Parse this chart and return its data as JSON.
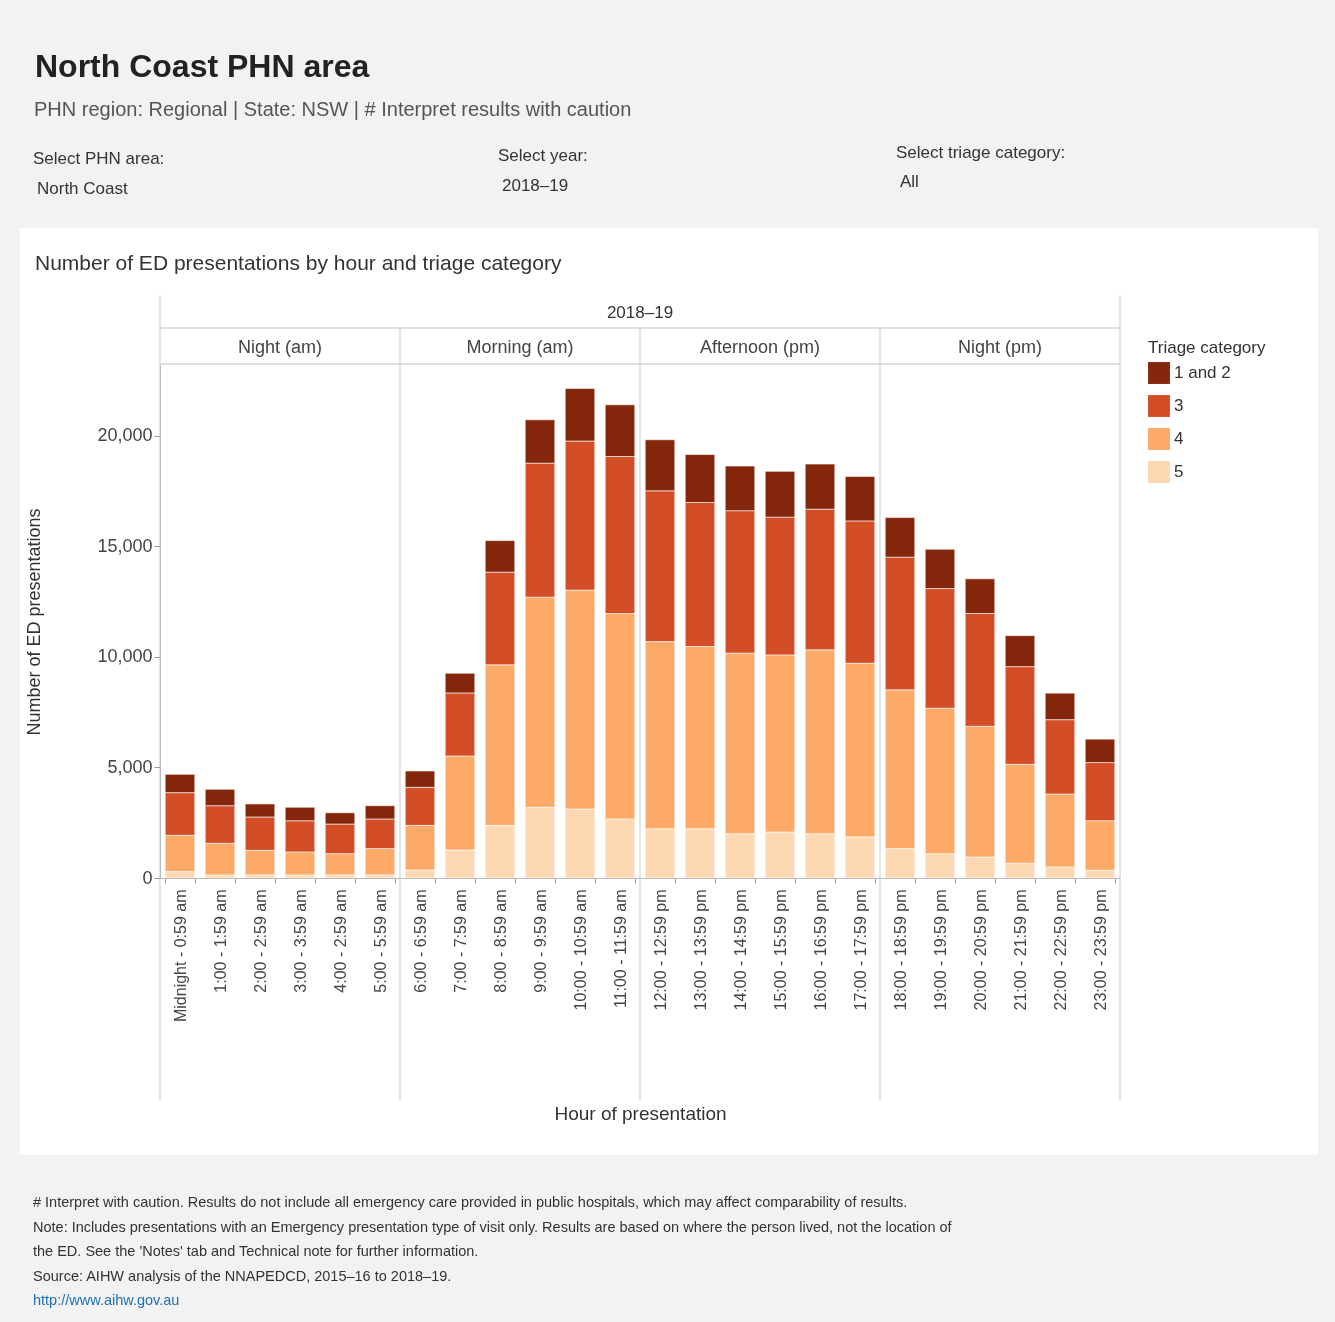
{
  "chart_data": {
    "type": "bar",
    "stacked": true,
    "title": "North Coast PHN area",
    "subtitle": "PHN region: Regional   |   State: NSW   |   # Interpret results with caution",
    "xlabel": "Hour of presentation",
    "ylabel": "Number of ED presentations",
    "legend_title": "Triage category",
    "categories": [
      "Midnight - 0:59 am",
      "1:00 - 1:59 am",
      "2:00 - 2:59 am",
      "3:00 - 3:59 am",
      "4:00 - 2:59 am",
      "5:00 - 5:59 am",
      "6:00 - 6:59 am",
      "7:00 - 7:59 am",
      "8:00 - 8:59 am",
      "9:00 - 9:59 am",
      "10:00 - 10:59 am",
      "11:00 - 11:59 am",
      "12:00 - 12:59 pm",
      "13:00 - 13:59 pm",
      "14:00 - 14:59 pm",
      "15:00 - 15:59 pm",
      "16:00 - 16:59 pm",
      "17:00 - 17:59 pm",
      "18:00 - 18:59 pm",
      "19:00 - 19:59 pm",
      "20:00 - 20:59 pm",
      "21:00 - 21:59 pm",
      "22:00 - 22:59 pm",
      "23:00 - 23:59 pm"
    ],
    "series": [
      {
        "name": "5",
        "color": "#fed8b2",
        "values": [
          290,
          140,
          140,
          140,
          140,
          140,
          360,
          1270,
          2380,
          3200,
          3120,
          2670,
          2230,
          2230,
          2000,
          2080,
          2000,
          1860,
          1330,
          1100,
          950,
          670,
          500,
          350
        ]
      },
      {
        "name": "4",
        "color": "#fda968",
        "values": [
          1640,
          1430,
          1110,
          1040,
          960,
          1190,
          2020,
          4250,
          7260,
          9500,
          9900,
          9290,
          8460,
          8240,
          8170,
          8010,
          8320,
          7850,
          7180,
          6580,
          5910,
          4470,
          3300,
          2240
        ]
      },
      {
        "name": "3",
        "color": "#d34d27",
        "values": [
          1930,
          1700,
          1510,
          1410,
          1340,
          1340,
          1720,
          2850,
          4190,
          6060,
          6740,
          7100,
          6820,
          6510,
          6440,
          6230,
          6360,
          6440,
          6000,
          5410,
          5100,
          4420,
          3360,
          2630
        ]
      },
      {
        "name": "1 and 2",
        "color": "#85270c",
        "values": [
          830,
          740,
          590,
          610,
          510,
          600,
          740,
          890,
          1430,
          1960,
          2380,
          2340,
          2310,
          2170,
          2020,
          2070,
          2040,
          2010,
          1790,
          1780,
          1570,
          1400,
          1200,
          1060
        ]
      }
    ],
    "ylim": [
      0,
      23200
    ],
    "yticks": [
      {
        "value": 0,
        "label": "0"
      },
      {
        "value": 5000,
        "label": "5,000"
      },
      {
        "value": 10000,
        "label": "10,000"
      },
      {
        "value": 15000,
        "label": "15,000"
      },
      {
        "value": 20000,
        "label": "20,000"
      }
    ],
    "legend": "top right",
    "annotations": [
      "Select PHN area:",
      "North Coast",
      "Select year:",
      "2018–19",
      "Select triage category:",
      "All",
      "Number of ED presentations by hour and triage category",
      "2018–19",
      "Night (am)",
      "Morning (am)",
      "Afternoon (pm)",
      "Night (pm)",
      "# Interpret with caution. Results do not include all emergency care provided in public hospitals, which may affect comparability of results.",
      "Note: Includes presentations with an Emergency presentation type of visit only. Results are based on where the person lived, not the location of the ED. See the 'Notes' tab and Technical note for further information.",
      "Source: AIHW analysis of the NNAPEDCD, 2015–16 to 2018–19.",
      "http://www.aihw.gov.au"
    ]
  }
}
